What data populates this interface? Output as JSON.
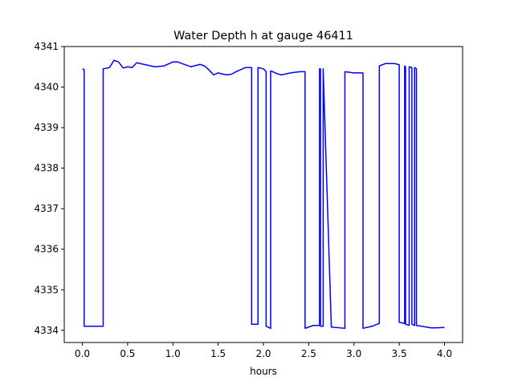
{
  "chart_data": {
    "type": "line",
    "title": "Water Depth h at gauge 46411",
    "xlabel": "hours",
    "ylabel": "",
    "xlim": [
      -0.2,
      4.2
    ],
    "ylim": [
      4333.7,
      4341.0
    ],
    "xticks": [
      0.0,
      0.5,
      1.0,
      1.5,
      2.0,
      2.5,
      3.0,
      3.5,
      4.0
    ],
    "xtick_labels": [
      "0.0",
      "0.5",
      "1.0",
      "1.5",
      "2.0",
      "2.5",
      "3.0",
      "3.5",
      "4.0"
    ],
    "yticks": [
      4334,
      4335,
      4336,
      4337,
      4338,
      4339,
      4340,
      4341
    ],
    "ytick_labels": [
      "4334",
      "4335",
      "4336",
      "4337",
      "4338",
      "4339",
      "4340",
      "4341"
    ],
    "grid": false,
    "series": [
      {
        "color": "#0000ff",
        "x": [
          0.0,
          0.02,
          0.02,
          0.1,
          0.23,
          0.23,
          0.3,
          0.35,
          0.4,
          0.45,
          0.5,
          0.55,
          0.6,
          0.7,
          0.8,
          0.9,
          1.0,
          1.05,
          1.1,
          1.2,
          1.3,
          1.35,
          1.4,
          1.45,
          1.5,
          1.55,
          1.6,
          1.65,
          1.7,
          1.8,
          1.87,
          1.87,
          1.94,
          1.94,
          2.0,
          2.03,
          2.03,
          2.08,
          2.08,
          2.15,
          2.2,
          2.3,
          2.4,
          2.46,
          2.46,
          2.55,
          2.62,
          2.62,
          2.63,
          2.63,
          2.66,
          2.66,
          2.75,
          2.9,
          2.9,
          3.0,
          3.1,
          3.1,
          3.2,
          3.28,
          3.28,
          3.35,
          3.45,
          3.5,
          3.5,
          3.56,
          3.56,
          3.57,
          3.57,
          3.61,
          3.61,
          3.64,
          3.64,
          3.67,
          3.67,
          3.69,
          3.69,
          3.75,
          3.8,
          3.85,
          3.9,
          4.0
        ],
        "y": [
          4340.45,
          4340.43,
          4334.1,
          4334.1,
          4334.1,
          4340.45,
          4340.48,
          4340.66,
          4340.62,
          4340.47,
          4340.5,
          4340.48,
          4340.6,
          4340.55,
          4340.5,
          4340.52,
          4340.62,
          4340.62,
          4340.58,
          4340.5,
          4340.56,
          4340.52,
          4340.42,
          4340.3,
          4340.35,
          4340.32,
          4340.3,
          4340.32,
          4340.38,
          4340.48,
          4340.48,
          4334.15,
          4334.15,
          4340.48,
          4340.45,
          4340.38,
          4334.1,
          4334.05,
          4340.4,
          4340.33,
          4340.3,
          4340.35,
          4340.38,
          4340.38,
          4334.05,
          4334.12,
          4334.12,
          4340.45,
          4340.45,
          4334.1,
          4334.1,
          4340.45,
          4334.08,
          4334.05,
          4340.38,
          4340.35,
          4340.35,
          4334.05,
          4334.1,
          4334.17,
          4340.52,
          4340.58,
          4340.58,
          4340.55,
          4334.2,
          4334.17,
          4340.52,
          4340.5,
          4334.15,
          4334.12,
          4340.5,
          4340.48,
          4334.15,
          4334.12,
          4340.48,
          4340.45,
          4334.12,
          4334.1,
          4334.08,
          4334.06,
          4334.06,
          4334.07
        ]
      }
    ]
  }
}
